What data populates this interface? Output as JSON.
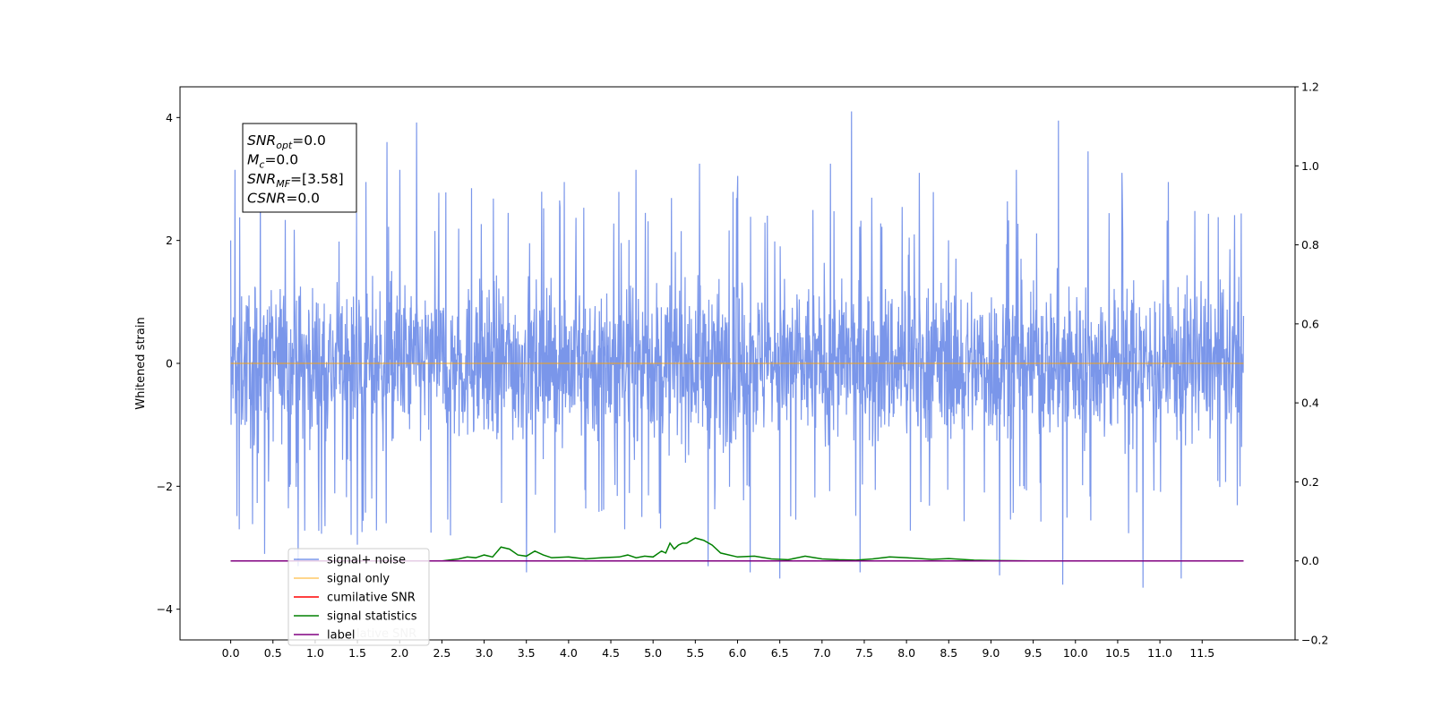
{
  "chart_data": {
    "type": "line",
    "title": "",
    "xlabel": "",
    "ylabel": "Whitened strain",
    "xlim": [
      -0.6,
      12.6
    ],
    "ylim": [
      -4.5,
      4.5
    ],
    "ylim_right": [
      -0.2,
      1.2
    ],
    "x_ticks": [
      0.0,
      0.5,
      1.0,
      1.5,
      2.0,
      2.5,
      3.0,
      3.5,
      4.0,
      4.5,
      5.0,
      5.5,
      6.0,
      6.5,
      7.0,
      7.5,
      8.0,
      8.5,
      9.0,
      9.5,
      10.0,
      10.5,
      11.0,
      11.5
    ],
    "x_tick_labels": [
      "0.0",
      "0.5",
      "1.0",
      "1.5",
      "2.0",
      "2.5",
      "3.0",
      "3.5",
      "4.0",
      "4.5",
      "5.0",
      "5.5",
      "6.0",
      "6.5",
      "7.0",
      "7.5",
      "8.0",
      "8.5",
      "9.0",
      "9.5",
      "10.0",
      "10.5",
      "11.0",
      "11.5"
    ],
    "y_ticks": [
      -4,
      -2,
      0,
      2,
      4
    ],
    "y_tick_labels": [
      "−4",
      "−2",
      "0",
      "2",
      "4"
    ],
    "y_ticks_right": [
      -0.2,
      0.0,
      0.2,
      0.4,
      0.6,
      0.8,
      1.0,
      1.2
    ],
    "y_tick_labels_right": [
      "−0.2",
      "0.0",
      "0.2",
      "0.4",
      "0.6",
      "0.8",
      "1.0",
      "1.2"
    ],
    "grid": false,
    "legend_position": "lower-left",
    "series": [
      {
        "name": "signal+ noise",
        "color": "#4169e1",
        "axis": "left",
        "x_range": [
          0.0,
          11.99
        ],
        "noise_band": [
          -1.5,
          1.5
        ],
        "peaks": [
          {
            "x": 0.05,
            "y": 3.15
          },
          {
            "x": 0.1,
            "y": 2.75
          },
          {
            "x": 0.35,
            "y": 2.95
          },
          {
            "x": 1.6,
            "y": 2.95
          },
          {
            "x": 1.85,
            "y": 3.6
          },
          {
            "x": 2.0,
            "y": 3.15
          },
          {
            "x": 2.2,
            "y": 3.92
          },
          {
            "x": 2.85,
            "y": 2.85
          },
          {
            "x": 3.95,
            "y": 2.95
          },
          {
            "x": 4.8,
            "y": 3.15
          },
          {
            "x": 5.55,
            "y": 3.25
          },
          {
            "x": 6.0,
            "y": 3.05
          },
          {
            "x": 7.1,
            "y": 3.25
          },
          {
            "x": 7.35,
            "y": 4.1
          },
          {
            "x": 8.15,
            "y": 3.1
          },
          {
            "x": 9.3,
            "y": 3.15
          },
          {
            "x": 9.8,
            "y": 3.95
          },
          {
            "x": 10.15,
            "y": 3.45
          },
          {
            "x": 10.55,
            "y": 3.1
          },
          {
            "x": 11.1,
            "y": 2.95
          },
          {
            "x": 11.95,
            "y": 2.95
          }
        ],
        "troughs": [
          {
            "x": 0.1,
            "y": -2.7
          },
          {
            "x": 0.4,
            "y": -3.1
          },
          {
            "x": 0.8,
            "y": -3.3
          },
          {
            "x": 1.5,
            "y": -2.95
          },
          {
            "x": 2.6,
            "y": -2.8
          },
          {
            "x": 3.5,
            "y": -3.4
          },
          {
            "x": 5.65,
            "y": -3.3
          },
          {
            "x": 6.15,
            "y": -3.4
          },
          {
            "x": 6.5,
            "y": -3.5
          },
          {
            "x": 7.45,
            "y": -3.4
          },
          {
            "x": 9.1,
            "y": -3.45
          },
          {
            "x": 9.85,
            "y": -3.6
          },
          {
            "x": 10.8,
            "y": -3.65
          },
          {
            "x": 11.25,
            "y": -3.5
          },
          {
            "x": 11.95,
            "y": -2.0
          }
        ]
      },
      {
        "name": "signal only",
        "color": "#ffa500",
        "axis": "left",
        "x": [
          0.0,
          11.99
        ],
        "values": [
          0.0,
          0.0
        ]
      },
      {
        "name": "cumilative SNR",
        "color": "#ff0000",
        "axis": "right",
        "x": [
          0.0,
          11.99
        ],
        "values": [
          0.0,
          0.0
        ]
      },
      {
        "name": "signal statistics",
        "color": "#008000",
        "axis": "right",
        "x": [
          0.0,
          2.0,
          2.5,
          2.7,
          2.8,
          2.9,
          3.0,
          3.1,
          3.2,
          3.3,
          3.4,
          3.5,
          3.6,
          3.7,
          3.8,
          4.0,
          4.2,
          4.4,
          4.6,
          4.7,
          4.8,
          4.9,
          5.0,
          5.1,
          5.15,
          5.2,
          5.25,
          5.3,
          5.35,
          5.4,
          5.5,
          5.6,
          5.7,
          5.8,
          6.0,
          6.2,
          6.4,
          6.6,
          6.8,
          7.0,
          7.2,
          7.4,
          7.6,
          7.8,
          8.0,
          8.3,
          8.5,
          8.8,
          9.0,
          9.5,
          10.0,
          11.9
        ],
        "values": [
          0.0,
          0.0,
          0.0,
          0.005,
          0.01,
          0.008,
          0.015,
          0.01,
          0.035,
          0.03,
          0.015,
          0.012,
          0.025,
          0.015,
          0.008,
          0.01,
          0.005,
          0.008,
          0.01,
          0.015,
          0.008,
          0.012,
          0.01,
          0.025,
          0.02,
          0.045,
          0.03,
          0.04,
          0.045,
          0.045,
          0.058,
          0.052,
          0.04,
          0.02,
          0.01,
          0.012,
          0.005,
          0.003,
          0.012,
          0.005,
          0.003,
          0.002,
          0.005,
          0.01,
          0.008,
          0.004,
          0.006,
          0.002,
          0.001,
          0.0,
          0.0,
          0.0
        ]
      },
      {
        "name": "label",
        "color": "#800080",
        "axis": "right",
        "x": [
          0.0,
          11.99
        ],
        "values": [
          0.0,
          0.0
        ]
      }
    ],
    "legend_overlap_text": "lative SNR",
    "annotations": [
      {
        "base": "SNR",
        "sub": "opt",
        "rest": "=0.0"
      },
      {
        "base": "M",
        "sub": "c",
        "rest": "=0.0"
      },
      {
        "base": "SNR",
        "sub": "MF",
        "rest": "=[3.58]"
      },
      {
        "base": "CSNR",
        "sub": "",
        "rest": "=0.0"
      }
    ]
  }
}
